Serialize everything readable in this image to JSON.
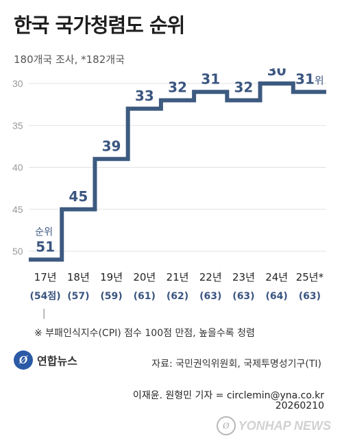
{
  "title": "한국 국가청렴도 순위",
  "subtitle": "180개국 조사, *182개국",
  "note": "※ 부패인식지수(CPI) 점수 100점 만점, 높을수록 청렴",
  "logo": {
    "mark": "Ø",
    "text": "연합뉴스"
  },
  "source": "자료: 국민권익위원회, 국제투명성기구(TI)",
  "credit": "이재윤. 원형민 기자 = circlemin@yna.co.kr",
  "date": "20260210",
  "watermark": "YONHAP NEWS",
  "colors": {
    "line": "#3d5a80",
    "grid": "#e1e1e1",
    "label": "#3a5580",
    "tick": "#999999"
  },
  "chart_data": {
    "type": "line",
    "step": true,
    "y_inverted": true,
    "ylim": [
      30,
      50
    ],
    "yticks": [
      30,
      35,
      40,
      45,
      50
    ],
    "categories": [
      "17년",
      "18년",
      "19년",
      "20년",
      "21년",
      "22년",
      "23년",
      "24년",
      "25년*"
    ],
    "scores": [
      "(54점)",
      "(57)",
      "(59)",
      "(61)",
      "(62)",
      "(63)",
      "(63)",
      "(64)",
      "(63)"
    ],
    "values": [
      51,
      45,
      39,
      33,
      32,
      31,
      32,
      30,
      31
    ],
    "first_label_prefix": "순위",
    "last_label_suffix": "위"
  }
}
